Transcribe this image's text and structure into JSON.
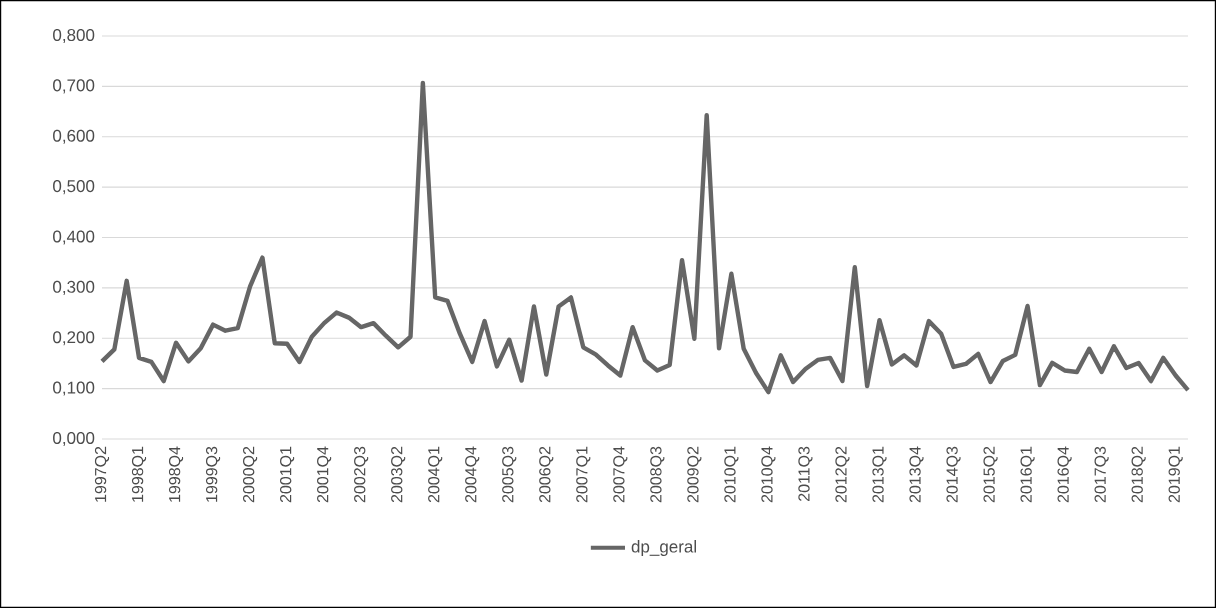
{
  "chart_data": {
    "type": "line",
    "categories": [
      "1997Q2",
      null,
      null,
      "1998Q1",
      null,
      null,
      "1998Q4",
      null,
      null,
      "1999Q3",
      null,
      null,
      "2000Q2",
      null,
      null,
      "2001Q1",
      null,
      null,
      "2001Q4",
      null,
      null,
      "2002Q3",
      null,
      null,
      "2003Q2",
      null,
      null,
      "2004Q1",
      null,
      null,
      "2004Q4",
      null,
      null,
      "2005Q3",
      null,
      null,
      "2006Q2",
      null,
      null,
      "2007Q1",
      null,
      null,
      "2007Q4",
      null,
      null,
      "2008Q3",
      null,
      null,
      "2009Q2",
      null,
      null,
      "2010Q1",
      null,
      null,
      "2010Q4",
      null,
      null,
      "2011Q3",
      null,
      null,
      "2012Q2",
      null,
      null,
      "2013Q1",
      null,
      null,
      "2013Q4",
      null,
      null,
      "2014Q3",
      null,
      null,
      "2015Q2",
      null,
      null,
      "2016Q1",
      null,
      null,
      "2016Q4",
      null,
      null,
      "2017Q3",
      null,
      null,
      "2018Q2",
      null,
      null,
      "2019Q1",
      null
    ],
    "series": [
      {
        "name": "dp_geral",
        "color": "#666666",
        "values": [
          0.154,
          0.178,
          0.314,
          0.161,
          0.153,
          0.115,
          0.191,
          0.154,
          0.18,
          0.227,
          0.215,
          0.22,
          0.303,
          0.36,
          0.19,
          0.189,
          0.153,
          0.203,
          0.23,
          0.251,
          0.241,
          0.222,
          0.23,
          0.205,
          0.182,
          0.203,
          0.707,
          0.281,
          0.274,
          0.209,
          0.153,
          0.234,
          0.144,
          0.197,
          0.116,
          0.263,
          0.128,
          0.263,
          0.281,
          0.182,
          0.168,
          0.146,
          0.126,
          0.222,
          0.156,
          0.136,
          0.147,
          0.355,
          0.199,
          0.643,
          0.18,
          0.328,
          0.179,
          0.131,
          0.093,
          0.166,
          0.113,
          0.139,
          0.157,
          0.161,
          0.115,
          0.341,
          0.105,
          0.236,
          0.148,
          0.166,
          0.146,
          0.234,
          0.209,
          0.143,
          0.149,
          0.169,
          0.113,
          0.155,
          0.167,
          0.264,
          0.107,
          0.151,
          0.136,
          0.133,
          0.179,
          0.133,
          0.184,
          0.141,
          0.151,
          0.115,
          0.161,
          0.126,
          0.097
        ]
      }
    ],
    "ylim": [
      0,
      0.8
    ],
    "yticks": [
      {
        "value": 0,
        "label": "0,000"
      },
      {
        "value": 0.1,
        "label": "0,100"
      },
      {
        "value": 0.2,
        "label": "0,200"
      },
      {
        "value": 0.3,
        "label": "0,300"
      },
      {
        "value": 0.4,
        "label": "0,400"
      },
      {
        "value": 0.5,
        "label": "0,500"
      },
      {
        "value": 0.6,
        "label": "0,600"
      },
      {
        "value": 0.7,
        "label": "0,700"
      },
      {
        "value": 0.8,
        "label": "0,800"
      }
    ],
    "grid": "y",
    "legend": "bottom",
    "marker": "none",
    "line_style": "solid"
  }
}
